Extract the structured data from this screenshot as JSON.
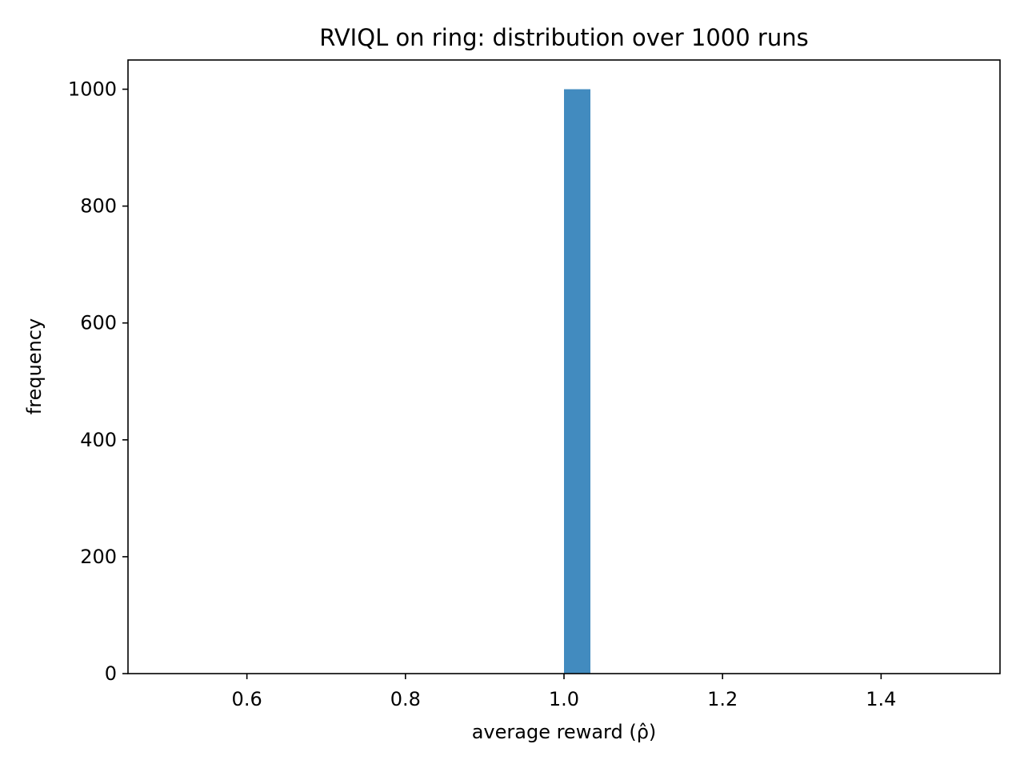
{
  "chart_data": {
    "type": "bar",
    "title": "RVIQL on ring: distribution over 1000 runs",
    "xlabel": "average reward (ρ̂)",
    "ylabel": "frequency",
    "xlim": [
      0.45,
      1.55
    ],
    "ylim": [
      0,
      1050
    ],
    "xticks": [
      0.6,
      0.8,
      1.0,
      1.2,
      1.4
    ],
    "xtick_labels": [
      "0.6",
      "0.8",
      "1.0",
      "1.2",
      "1.4"
    ],
    "yticks": [
      0,
      200,
      400,
      600,
      800,
      1000
    ],
    "ytick_labels": [
      "0",
      "200",
      "400",
      "600",
      "800",
      "1000"
    ],
    "grid": false,
    "bins": [
      {
        "x0": 1.0,
        "x1": 1.0333,
        "count": 1000
      }
    ],
    "bar_color": "#428bbf"
  }
}
